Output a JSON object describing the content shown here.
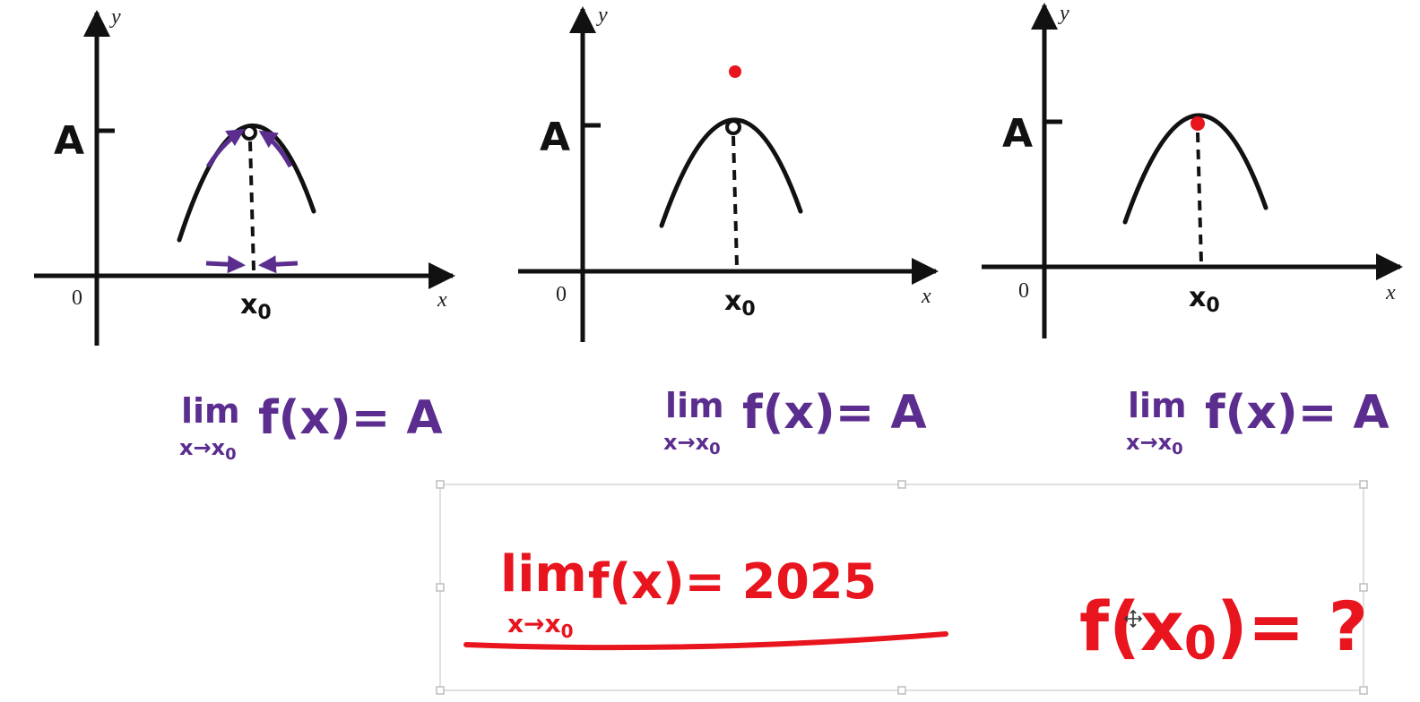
{
  "graphs": [
    {
      "y_label": "y",
      "x_label": "x",
      "origin_label": "0",
      "A_label": "A",
      "x0_label": "x",
      "x0_sub": "0",
      "point_style": "hollow",
      "extra_point": false,
      "approach_arrows": true,
      "limit": {
        "lim": "lim",
        "sub": "x→x",
        "sub0": "0",
        "expr": "f(x)= A"
      }
    },
    {
      "y_label": "y",
      "x_label": "x",
      "origin_label": "0",
      "A_label": "A",
      "x0_label": "x",
      "x0_sub": "0",
      "point_style": "hollow",
      "extra_point": true,
      "approach_arrows": false,
      "limit": {
        "lim": "lim",
        "sub": "x→x",
        "sub0": "0",
        "expr": "f(x)= A"
      }
    },
    {
      "y_label": "y",
      "x_label": "x",
      "origin_label": "0",
      "A_label": "A",
      "x0_label": "x",
      "x0_sub": "0",
      "point_style": "filled",
      "extra_point": false,
      "approach_arrows": false,
      "limit": {
        "lim": "lim",
        "sub": "x→x",
        "sub0": "0",
        "expr": "f(x)= A"
      }
    }
  ],
  "note_box": {
    "lim": "lim",
    "sub": "x→x",
    "sub0": "0",
    "expr": "f(x)= 2025",
    "question": "f(x",
    "question_sub": "0",
    "question_tail": ")= ?"
  },
  "colors": {
    "ink": "#111111",
    "purple": "#5b2d8e",
    "red": "#e8141e",
    "handle": "#bdbdbd"
  }
}
